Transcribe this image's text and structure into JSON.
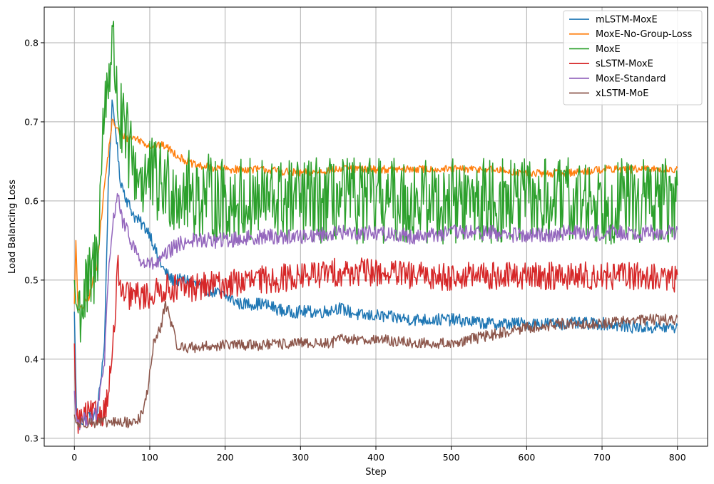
{
  "chart_data": {
    "type": "line",
    "title": "",
    "xlabel": "Step",
    "ylabel": "Load Balancing Loss",
    "xlim": [
      -40,
      840
    ],
    "ylim": [
      0.29,
      0.845
    ],
    "xticks": [
      0,
      100,
      200,
      300,
      400,
      500,
      600,
      700,
      800
    ],
    "yticks": [
      0.3,
      0.4,
      0.5,
      0.6,
      0.7,
      0.8
    ],
    "ytick_labels": [
      "0.3",
      "0.4",
      "0.5",
      "0.6",
      "0.7",
      "0.8"
    ],
    "grid": true,
    "legend_position": "top-right",
    "series": [
      {
        "name": "mLSTM-MoxE",
        "color": "#1f77b4",
        "x": [
          0,
          3,
          10,
          20,
          30,
          40,
          45,
          50,
          55,
          60,
          70,
          80,
          90,
          100,
          110,
          120,
          130,
          150,
          170,
          200,
          220,
          250,
          280,
          300,
          330,
          350,
          380,
          400,
          450,
          500,
          550,
          600,
          650,
          700,
          750,
          800
        ],
        "y": [
          0.46,
          0.325,
          0.322,
          0.33,
          0.33,
          0.42,
          0.62,
          0.72,
          0.69,
          0.63,
          0.6,
          0.58,
          0.57,
          0.56,
          0.53,
          0.51,
          0.5,
          0.5,
          0.49,
          0.48,
          0.47,
          0.47,
          0.46,
          0.46,
          0.46,
          0.465,
          0.455,
          0.455,
          0.45,
          0.45,
          0.445,
          0.445,
          0.445,
          0.445,
          0.44,
          0.44
        ],
        "noise": 0.008
      },
      {
        "name": "MoxE-No-Group-Loss",
        "color": "#ff7f0e",
        "x": [
          0,
          2,
          5,
          10,
          20,
          30,
          40,
          45,
          50,
          55,
          60,
          70,
          80,
          90,
          100,
          110,
          120,
          140,
          160,
          200,
          250,
          300,
          350,
          400,
          450,
          500,
          550,
          600,
          650,
          700,
          750,
          800
        ],
        "y": [
          0.47,
          0.55,
          0.46,
          0.465,
          0.48,
          0.52,
          0.62,
          0.66,
          0.7,
          0.695,
          0.685,
          0.68,
          0.68,
          0.675,
          0.67,
          0.67,
          0.67,
          0.655,
          0.645,
          0.64,
          0.64,
          0.635,
          0.64,
          0.64,
          0.64,
          0.64,
          0.64,
          0.635,
          0.635,
          0.64,
          0.64,
          0.64
        ],
        "noise": 0.005
      },
      {
        "name": "MoxE",
        "color": "#2ca02c",
        "x": [
          0,
          2,
          5,
          10,
          20,
          30,
          40,
          45,
          50,
          55,
          60,
          70,
          80,
          90,
          100,
          110,
          120,
          150,
          200,
          250,
          300,
          350,
          400,
          450,
          500,
          550,
          600,
          650,
          700,
          750,
          800
        ],
        "y": [
          0.5,
          0.47,
          0.465,
          0.47,
          0.49,
          0.53,
          0.72,
          0.76,
          0.8,
          0.76,
          0.7,
          0.67,
          0.64,
          0.63,
          0.63,
          0.62,
          0.62,
          0.61,
          0.6,
          0.6,
          0.6,
          0.6,
          0.6,
          0.6,
          0.6,
          0.6,
          0.6,
          0.6,
          0.6,
          0.6,
          0.6
        ],
        "noise": 0.055
      },
      {
        "name": "sLSTM-MoxE",
        "color": "#d62728",
        "x": [
          0,
          2,
          5,
          10,
          20,
          30,
          40,
          45,
          50,
          55,
          58,
          62,
          70,
          80,
          90,
          100,
          110,
          120,
          150,
          200,
          250,
          300,
          350,
          400,
          450,
          500,
          550,
          600,
          650,
          700,
          750,
          800
        ],
        "y": [
          0.42,
          0.33,
          0.322,
          0.325,
          0.33,
          0.33,
          0.335,
          0.36,
          0.4,
          0.47,
          0.52,
          0.48,
          0.48,
          0.48,
          0.48,
          0.48,
          0.485,
          0.49,
          0.49,
          0.495,
          0.5,
          0.505,
          0.51,
          0.51,
          0.505,
          0.505,
          0.505,
          0.505,
          0.505,
          0.505,
          0.505,
          0.5
        ],
        "noise": 0.018
      },
      {
        "name": "MoxE-Standard",
        "color": "#9467bd",
        "x": [
          0,
          2,
          5,
          10,
          20,
          30,
          40,
          45,
          50,
          55,
          58,
          62,
          70,
          80,
          90,
          100,
          110,
          120,
          130,
          150,
          200,
          250,
          300,
          350,
          400,
          450,
          500,
          550,
          600,
          650,
          700,
          750,
          800
        ],
        "y": [
          0.36,
          0.33,
          0.32,
          0.322,
          0.325,
          0.33,
          0.4,
          0.5,
          0.56,
          0.6,
          0.61,
          0.58,
          0.56,
          0.54,
          0.52,
          0.52,
          0.52,
          0.53,
          0.54,
          0.55,
          0.55,
          0.555,
          0.555,
          0.56,
          0.56,
          0.555,
          0.56,
          0.56,
          0.555,
          0.56,
          0.56,
          0.56,
          0.56
        ],
        "noise": 0.01
      },
      {
        "name": "xLSTM-MoE",
        "color": "#8c564b",
        "x": [
          0,
          2,
          5,
          10,
          20,
          40,
          60,
          80,
          90,
          95,
          100,
          105,
          110,
          115,
          120,
          125,
          130,
          135,
          140,
          160,
          200,
          250,
          300,
          340,
          350,
          400,
          450,
          500,
          550,
          600,
          650,
          700,
          750,
          800
        ],
        "y": [
          0.33,
          0.32,
          0.318,
          0.32,
          0.32,
          0.32,
          0.32,
          0.32,
          0.33,
          0.35,
          0.38,
          0.42,
          0.43,
          0.44,
          0.47,
          0.46,
          0.44,
          0.42,
          0.415,
          0.415,
          0.418,
          0.418,
          0.42,
          0.42,
          0.425,
          0.425,
          0.42,
          0.42,
          0.43,
          0.44,
          0.445,
          0.445,
          0.45,
          0.45
        ],
        "noise": 0.007
      }
    ]
  }
}
